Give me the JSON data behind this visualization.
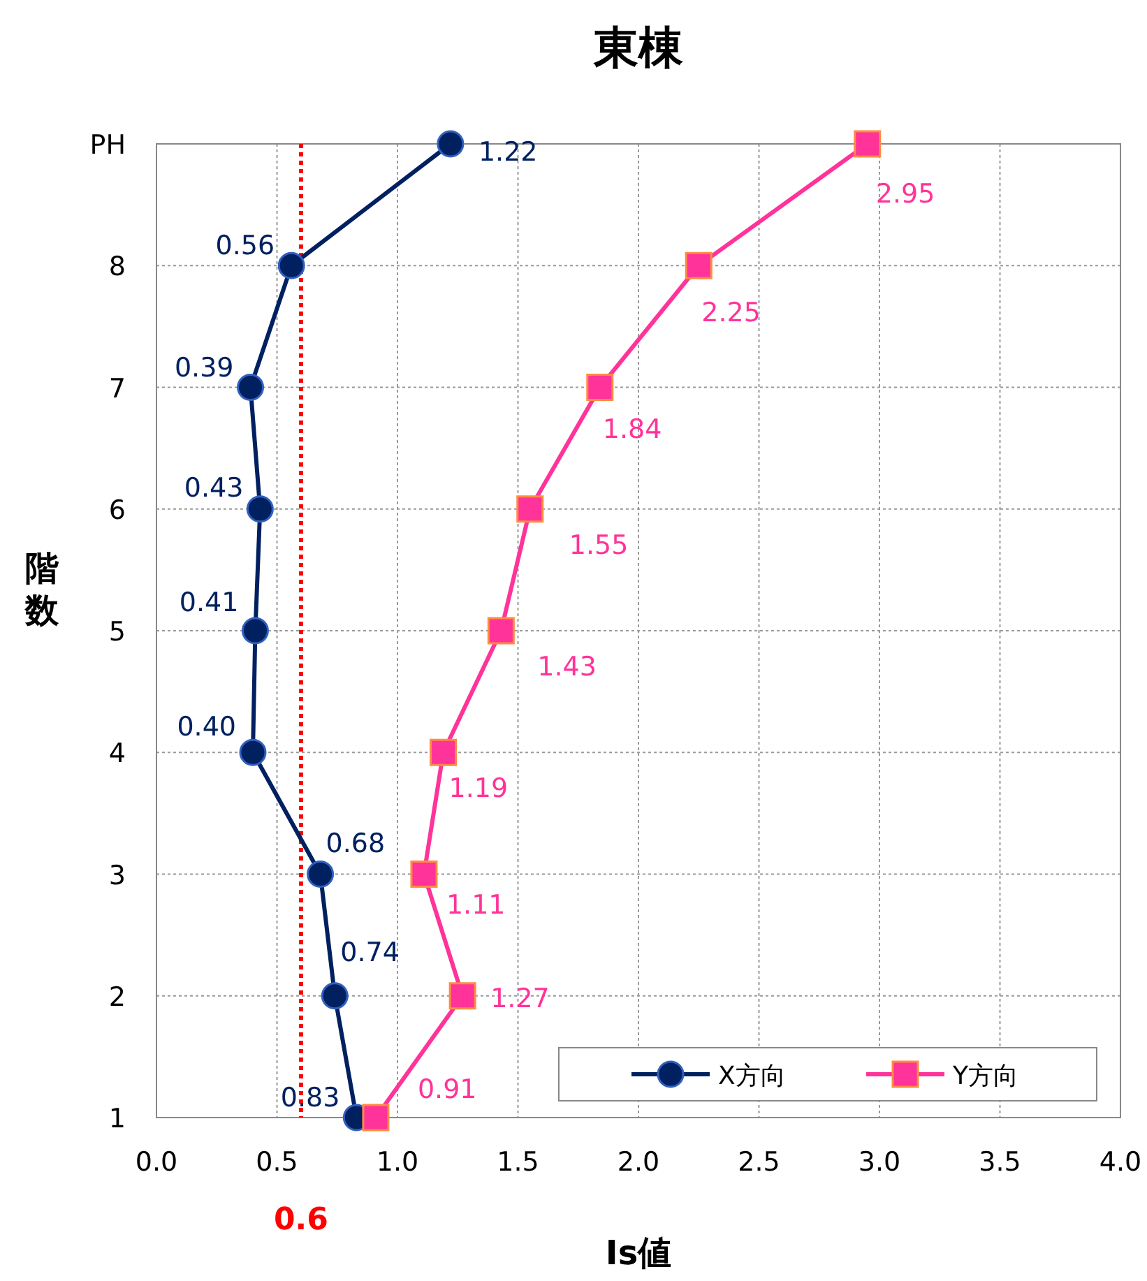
{
  "chart_data": {
    "type": "line",
    "orientation": "horizontal",
    "title": "東棟",
    "xlabel": "Is値",
    "ylabel": "階数",
    "categories": [
      "PH",
      "8",
      "7",
      "6",
      "5",
      "4",
      "3",
      "2",
      "1"
    ],
    "xlim": [
      0,
      4
    ],
    "xticks": [
      {
        "value": 0,
        "label": "0.0"
      },
      0.5,
      {
        "value": 1,
        "label": "1.0"
      },
      1.5,
      {
        "value": 2,
        "label": "2.0"
      },
      2.5,
      {
        "value": 3,
        "label": "3.0"
      },
      3.5,
      {
        "value": 4,
        "label": "4.0"
      }
    ],
    "grid": true,
    "legend": "bottom right",
    "ref_lines": [
      {
        "axis": "x",
        "value": 0.6,
        "label": "0.6",
        "color": "#ff0000",
        "line_style": "dotted"
      }
    ],
    "series": [
      {
        "name": "X方向",
        "color": "#002060",
        "marker": "circle",
        "values": [
          1.22,
          0.56,
          0.39,
          0.43,
          0.41,
          0.4,
          0.68,
          0.74,
          0.83
        ],
        "value_labels": [
          "1.22",
          "0.56",
          "0.39",
          "0.43",
          "0.41",
          "0.40",
          "0.68",
          "0.74",
          "0.83"
        ]
      },
      {
        "name": "Y方向",
        "color": "#ff3399",
        "marker": "square",
        "values": [
          2.95,
          2.25,
          1.84,
          1.55,
          1.43,
          1.19,
          1.11,
          1.27,
          0.91
        ],
        "value_labels": [
          "2.95",
          "2.25",
          "1.84",
          "1.55",
          "1.43",
          "1.19",
          "1.11",
          "1.27",
          "0.91"
        ]
      }
    ]
  }
}
